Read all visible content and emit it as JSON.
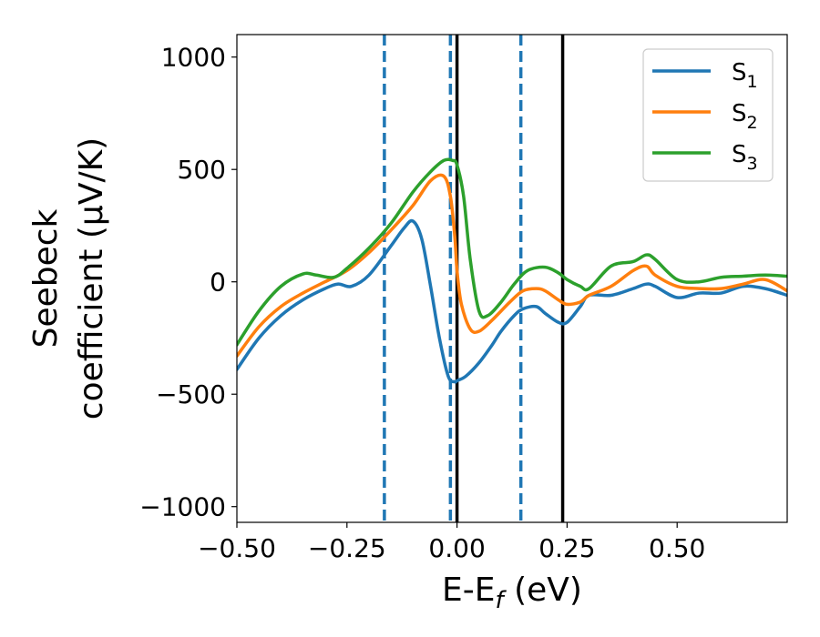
{
  "chart_data": {
    "type": "line",
    "title": "",
    "xlabel_main": "E-E",
    "xlabel_sub": "f",
    "xlabel_unit": " (eV)",
    "ylabel_line1": "Seebeck",
    "ylabel_line2": "coefficient  (μV/K)",
    "xlim": [
      -0.5,
      0.75
    ],
    "ylim": [
      -1070,
      1100
    ],
    "x_ticks": [
      -0.5,
      -0.25,
      0.0,
      0.25,
      0.5
    ],
    "x_tick_labels": [
      "−0.50",
      "−0.25",
      "0.00",
      "0.25",
      "0.50"
    ],
    "y_ticks": [
      1000,
      500,
      0,
      -500,
      -1000
    ],
    "y_tick_labels": [
      "1000",
      "500",
      "0",
      "−500",
      "−1000"
    ],
    "grid": false,
    "legend_position": "top-right",
    "vlines": [
      {
        "x": -0.165,
        "style": "dashed",
        "color": "#1f77b4"
      },
      {
        "x": -0.015,
        "style": "dashed",
        "color": "#1f77b4"
      },
      {
        "x": 0.145,
        "style": "dashed",
        "color": "#1f77b4"
      },
      {
        "x": 0.0,
        "style": "solid",
        "color": "#000000"
      },
      {
        "x": 0.24,
        "style": "solid",
        "color": "#000000"
      }
    ],
    "series": [
      {
        "name": "S",
        "sub": "1",
        "color": "#1f77b4",
        "x": [
          -0.5,
          -0.45,
          -0.4,
          -0.35,
          -0.3,
          -0.27,
          -0.24,
          -0.2,
          -0.15,
          -0.12,
          -0.1,
          -0.08,
          -0.06,
          -0.04,
          -0.02,
          -0.005,
          0.0,
          0.02,
          0.05,
          0.08,
          0.1,
          0.13,
          0.15,
          0.18,
          0.2,
          0.23,
          0.25,
          0.28,
          0.3,
          0.35,
          0.4,
          0.43,
          0.45,
          0.5,
          0.55,
          0.6,
          0.65,
          0.7,
          0.75
        ],
        "y": [
          -390,
          -250,
          -150,
          -80,
          -30,
          -10,
          -20,
          30,
          160,
          240,
          270,
          190,
          -20,
          -250,
          -420,
          -445,
          -440,
          -420,
          -360,
          -280,
          -220,
          -150,
          -120,
          -110,
          -140,
          -180,
          -180,
          -110,
          -60,
          -60,
          -30,
          -10,
          -20,
          -70,
          -50,
          -50,
          -20,
          -30,
          -60
        ]
      },
      {
        "name": "S",
        "sub": "2",
        "color": "#ff7f0e",
        "x": [
          -0.5,
          -0.45,
          -0.4,
          -0.35,
          -0.3,
          -0.25,
          -0.2,
          -0.15,
          -0.1,
          -0.06,
          -0.03,
          -0.015,
          -0.005,
          0.0,
          0.01,
          0.03,
          0.05,
          0.08,
          0.12,
          0.15,
          0.18,
          0.2,
          0.23,
          0.25,
          0.28,
          0.3,
          0.35,
          0.4,
          0.43,
          0.45,
          0.5,
          0.55,
          0.6,
          0.65,
          0.7,
          0.75
        ],
        "y": [
          -330,
          -200,
          -110,
          -50,
          0,
          50,
          130,
          230,
          340,
          450,
          470,
          380,
          200,
          50,
          -100,
          -210,
          -220,
          -170,
          -90,
          -40,
          -30,
          -40,
          -80,
          -100,
          -90,
          -60,
          -20,
          50,
          70,
          30,
          -20,
          -30,
          -30,
          -10,
          10,
          -40
        ]
      },
      {
        "name": "S",
        "sub": "3",
        "color": "#2ca02c",
        "x": [
          -0.5,
          -0.45,
          -0.4,
          -0.35,
          -0.32,
          -0.28,
          -0.25,
          -0.2,
          -0.15,
          -0.1,
          -0.06,
          -0.03,
          -0.01,
          0.0,
          0.015,
          0.03,
          0.05,
          0.07,
          0.1,
          0.13,
          0.16,
          0.2,
          0.23,
          0.25,
          0.28,
          0.3,
          0.35,
          0.4,
          0.43,
          0.45,
          0.5,
          0.55,
          0.6,
          0.65,
          0.7,
          0.75
        ],
        "y": [
          -280,
          -130,
          -20,
          35,
          30,
          20,
          60,
          150,
          260,
          400,
          490,
          540,
          540,
          520,
          380,
          100,
          -130,
          -150,
          -90,
          -10,
          50,
          65,
          40,
          10,
          -20,
          -30,
          70,
          90,
          120,
          100,
          10,
          0,
          20,
          25,
          30,
          25
        ]
      }
    ]
  }
}
